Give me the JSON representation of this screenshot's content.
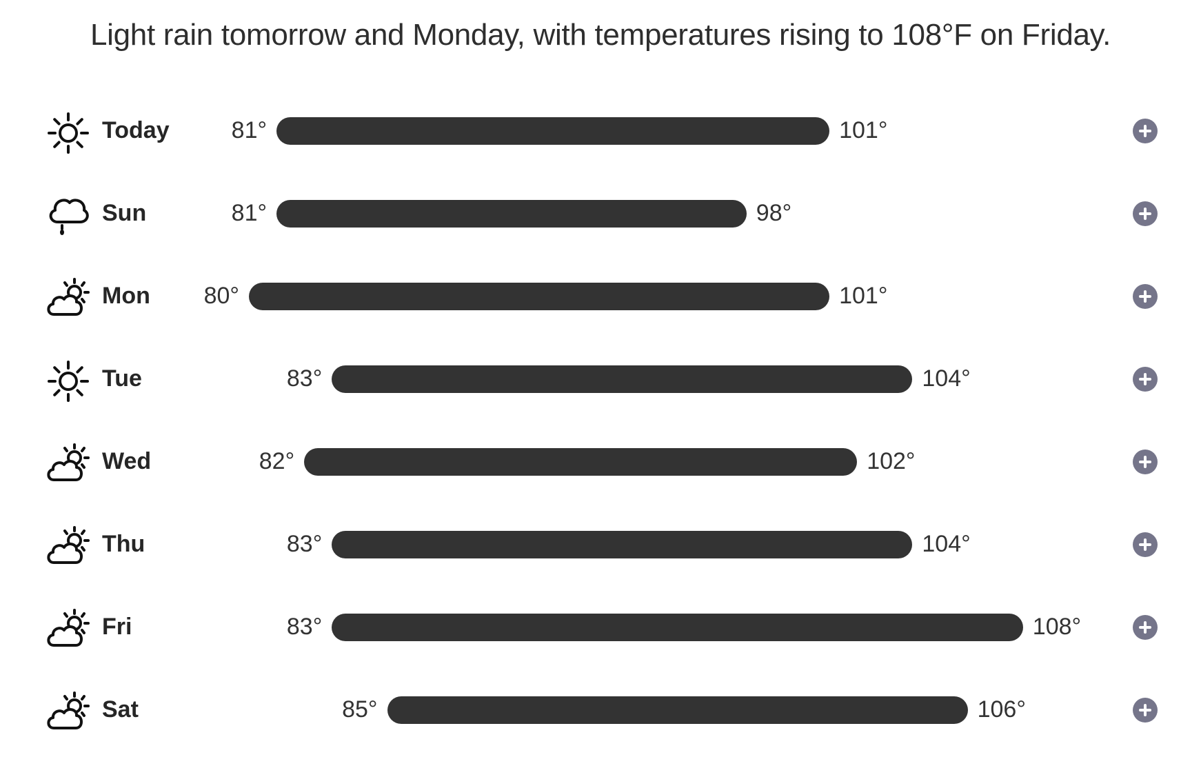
{
  "summary": "Light rain tomorrow and Monday, with temperatures rising to 108°F on Friday.",
  "scale": {
    "min": 80,
    "max": 108
  },
  "days": [
    {
      "label": "Today",
      "icon": "sun-icon",
      "low": 81,
      "high": 101,
      "low_text": "81°",
      "high_text": "101°"
    },
    {
      "label": "Sun",
      "icon": "rain-cloud-icon",
      "low": 81,
      "high": 98,
      "low_text": "81°",
      "high_text": "98°"
    },
    {
      "label": "Mon",
      "icon": "partly-cloudy-icon",
      "low": 80,
      "high": 101,
      "low_text": "80°",
      "high_text": "101°"
    },
    {
      "label": "Tue",
      "icon": "sun-icon",
      "low": 83,
      "high": 104,
      "low_text": "83°",
      "high_text": "104°"
    },
    {
      "label": "Wed",
      "icon": "partly-cloudy-icon",
      "low": 82,
      "high": 102,
      "low_text": "82°",
      "high_text": "102°"
    },
    {
      "label": "Thu",
      "icon": "partly-cloudy-icon",
      "low": 83,
      "high": 104,
      "low_text": "83°",
      "high_text": "104°"
    },
    {
      "label": "Fri",
      "icon": "partly-cloudy-icon",
      "low": 83,
      "high": 108,
      "low_text": "83°",
      "high_text": "108°"
    },
    {
      "label": "Sat",
      "icon": "partly-cloudy-icon",
      "low": 85,
      "high": 106,
      "low_text": "85°",
      "high_text": "106°"
    }
  ]
}
